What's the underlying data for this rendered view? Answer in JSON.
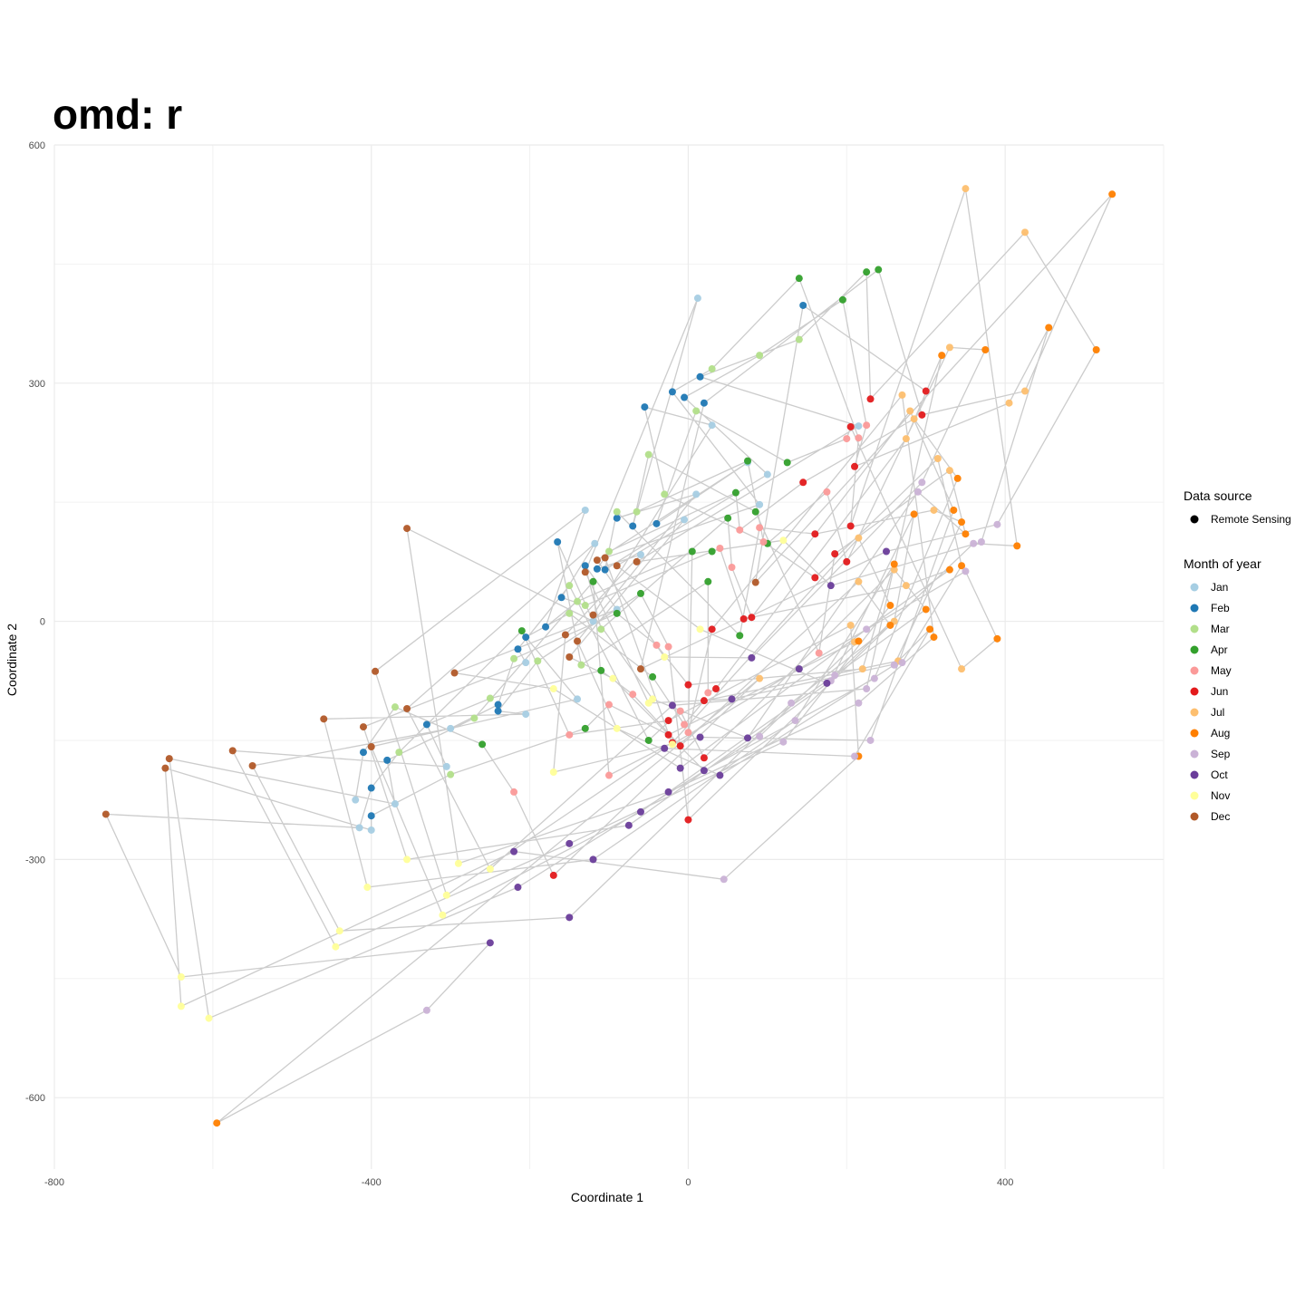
{
  "chart_data": {
    "type": "scatter",
    "title": "omd: r",
    "xlabel": "Coordinate 1",
    "ylabel": "Coordinate 2",
    "xlim": [
      -800,
      600
    ],
    "ylim": [
      -690,
      600
    ],
    "x_ticks": [
      -800,
      -400,
      0,
      400
    ],
    "y_ticks": [
      -600,
      -300,
      0,
      300,
      600
    ],
    "grid": true,
    "legend_position": "right",
    "connect_points_in_order": true,
    "line_color": "#cccccc",
    "legend": {
      "source_title": "Data source",
      "source_entries": [
        {
          "label": "Remote Sensing",
          "color": "#000000"
        }
      ],
      "month_title": "Month of year",
      "month_entries": [
        {
          "label": "Jan",
          "color": "#a6cee3"
        },
        {
          "label": "Feb",
          "color": "#1f78b4"
        },
        {
          "label": "Mar",
          "color": "#b2df8a"
        },
        {
          "label": "Apr",
          "color": "#33a02c"
        },
        {
          "label": "May",
          "color": "#fb9a99"
        },
        {
          "label": "Jun",
          "color": "#e31a1c"
        },
        {
          "label": "Jul",
          "color": "#fdbf6f"
        },
        {
          "label": "Aug",
          "color": "#ff7f00"
        },
        {
          "label": "Sep",
          "color": "#cab2d6"
        },
        {
          "label": "Oct",
          "color": "#6a3d9a"
        },
        {
          "label": "Nov",
          "color": "#ffff99"
        },
        {
          "label": "Dec",
          "color": "#b15928"
        }
      ]
    },
    "series": [
      {
        "name": "Jan",
        "points": [
          [
            -420,
            -225
          ],
          [
            -415,
            -260
          ],
          [
            -400,
            -263
          ],
          [
            -370,
            -230
          ],
          [
            -300,
            -135
          ],
          [
            -305,
            -183
          ],
          [
            -205,
            -117
          ],
          [
            -205,
            -52
          ],
          [
            -140,
            -98
          ],
          [
            -120,
            0
          ],
          [
            -118,
            98
          ],
          [
            -130,
            140
          ],
          [
            -90,
            15
          ],
          [
            -60,
            84
          ],
          [
            -5,
            128
          ],
          [
            10,
            160
          ],
          [
            12,
            407
          ],
          [
            30,
            247
          ],
          [
            75,
            200
          ],
          [
            100,
            185
          ],
          [
            90,
            147
          ],
          [
            215,
            246
          ]
        ]
      },
      {
        "name": "Feb",
        "points": [
          [
            -410,
            -165
          ],
          [
            -400,
            -210
          ],
          [
            -400,
            -245
          ],
          [
            -380,
            -175
          ],
          [
            -330,
            -130
          ],
          [
            -240,
            -105
          ],
          [
            -240,
            -113
          ],
          [
            -215,
            -35
          ],
          [
            -205,
            -20
          ],
          [
            -180,
            -7
          ],
          [
            -165,
            100
          ],
          [
            -160,
            30
          ],
          [
            -130,
            70
          ],
          [
            -115,
            66
          ],
          [
            -105,
            65
          ],
          [
            -90,
            130
          ],
          [
            -70,
            120
          ],
          [
            -55,
            270
          ],
          [
            -40,
            123
          ],
          [
            -20,
            289
          ],
          [
            -5,
            282
          ],
          [
            15,
            308
          ],
          [
            20,
            275
          ],
          [
            145,
            398
          ]
        ]
      },
      {
        "name": "Mar",
        "points": [
          [
            -370,
            -108
          ],
          [
            -365,
            -165
          ],
          [
            -300,
            -193
          ],
          [
            -270,
            -122
          ],
          [
            -250,
            -97
          ],
          [
            -220,
            -47
          ],
          [
            -190,
            -50
          ],
          [
            -150,
            45
          ],
          [
            -150,
            10
          ],
          [
            -140,
            25
          ],
          [
            -135,
            -55
          ],
          [
            -130,
            20
          ],
          [
            -110,
            -10
          ],
          [
            -100,
            88
          ],
          [
            -90,
            138
          ],
          [
            -65,
            138
          ],
          [
            -50,
            210
          ],
          [
            -30,
            160
          ],
          [
            10,
            265
          ],
          [
            30,
            318
          ],
          [
            90,
            335
          ],
          [
            140,
            355
          ]
        ]
      },
      {
        "name": "Apr",
        "points": [
          [
            -260,
            -155
          ],
          [
            -210,
            -12
          ],
          [
            -130,
            -135
          ],
          [
            -120,
            50
          ],
          [
            -110,
            -62
          ],
          [
            -90,
            10
          ],
          [
            -60,
            35
          ],
          [
            -50,
            -150
          ],
          [
            -45,
            -70
          ],
          [
            5,
            88
          ],
          [
            25,
            50
          ],
          [
            30,
            88
          ],
          [
            50,
            130
          ],
          [
            60,
            162
          ],
          [
            65,
            -18
          ],
          [
            75,
            202
          ],
          [
            85,
            138
          ],
          [
            100,
            98
          ],
          [
            125,
            200
          ],
          [
            140,
            432
          ],
          [
            195,
            405
          ],
          [
            225,
            440
          ],
          [
            240,
            443
          ]
        ]
      },
      {
        "name": "May",
        "points": [
          [
            -220,
            -215
          ],
          [
            -150,
            -143
          ],
          [
            -100,
            -105
          ],
          [
            -100,
            -194
          ],
          [
            -70,
            -92
          ],
          [
            -40,
            -30
          ],
          [
            -25,
            -32
          ],
          [
            -10,
            -113
          ],
          [
            -5,
            -130
          ],
          [
            0,
            -140
          ],
          [
            25,
            -90
          ],
          [
            40,
            92
          ],
          [
            55,
            68
          ],
          [
            65,
            115
          ],
          [
            90,
            118
          ],
          [
            95,
            100
          ],
          [
            165,
            -40
          ],
          [
            175,
            163
          ],
          [
            200,
            230
          ],
          [
            215,
            231
          ],
          [
            225,
            247
          ]
        ]
      },
      {
        "name": "Jun",
        "points": [
          [
            -170,
            -320
          ],
          [
            -25,
            -125
          ],
          [
            -25,
            -143
          ],
          [
            -20,
            -153
          ],
          [
            -10,
            -157
          ],
          [
            0,
            -80
          ],
          [
            0,
            -250
          ],
          [
            20,
            -172
          ],
          [
            20,
            -100
          ],
          [
            30,
            -10
          ],
          [
            35,
            -85
          ],
          [
            70,
            3
          ],
          [
            80,
            5
          ],
          [
            145,
            175
          ],
          [
            160,
            110
          ],
          [
            160,
            55
          ],
          [
            185,
            85
          ],
          [
            200,
            75
          ],
          [
            205,
            245
          ],
          [
            205,
            120
          ],
          [
            210,
            195
          ],
          [
            230,
            280
          ],
          [
            295,
            260
          ],
          [
            300,
            290
          ]
        ]
      },
      {
        "name": "Jul",
        "points": [
          [
            90,
            -72
          ],
          [
            205,
            -5
          ],
          [
            210,
            -26
          ],
          [
            215,
            105
          ],
          [
            215,
            50
          ],
          [
            220,
            -60
          ],
          [
            260,
            0
          ],
          [
            260,
            65
          ],
          [
            265,
            -50
          ],
          [
            270,
            285
          ],
          [
            275,
            230
          ],
          [
            275,
            45
          ],
          [
            280,
            265
          ],
          [
            285,
            255
          ],
          [
            310,
            140
          ],
          [
            315,
            205
          ],
          [
            330,
            190
          ],
          [
            330,
            345
          ],
          [
            345,
            -60
          ],
          [
            405,
            275
          ],
          [
            425,
            490
          ],
          [
            425,
            290
          ],
          [
            350,
            545
          ]
        ]
      },
      {
        "name": "Aug",
        "points": [
          [
            -595,
            -632
          ],
          [
            215,
            -170
          ],
          [
            215,
            -25
          ],
          [
            255,
            20
          ],
          [
            255,
            -5
          ],
          [
            260,
            72
          ],
          [
            285,
            135
          ],
          [
            300,
            15
          ],
          [
            305,
            -10
          ],
          [
            310,
            -20
          ],
          [
            320,
            335
          ],
          [
            330,
            65
          ],
          [
            335,
            140
          ],
          [
            340,
            180
          ],
          [
            345,
            125
          ],
          [
            345,
            70
          ],
          [
            350,
            110
          ],
          [
            375,
            342
          ],
          [
            390,
            -22
          ],
          [
            415,
            95
          ],
          [
            455,
            370
          ],
          [
            515,
            342
          ],
          [
            535,
            538
          ]
        ]
      },
      {
        "name": "Sep",
        "points": [
          [
            -330,
            -490
          ],
          [
            45,
            -325
          ],
          [
            90,
            -145
          ],
          [
            120,
            -152
          ],
          [
            130,
            -103
          ],
          [
            135,
            -125
          ],
          [
            180,
            -75
          ],
          [
            185,
            -68
          ],
          [
            210,
            -170
          ],
          [
            215,
            -103
          ],
          [
            225,
            -85
          ],
          [
            225,
            -10
          ],
          [
            230,
            -150
          ],
          [
            235,
            -72
          ],
          [
            260,
            -55
          ],
          [
            270,
            -52
          ],
          [
            290,
            163
          ],
          [
            295,
            175
          ],
          [
            350,
            63
          ],
          [
            360,
            98
          ],
          [
            370,
            100
          ],
          [
            390,
            122
          ]
        ]
      },
      {
        "name": "Oct",
        "points": [
          [
            -250,
            -405
          ],
          [
            -220,
            -290
          ],
          [
            -215,
            -335
          ],
          [
            -150,
            -280
          ],
          [
            -150,
            -373
          ],
          [
            -120,
            -300
          ],
          [
            -75,
            -257
          ],
          [
            -60,
            -240
          ],
          [
            -30,
            -160
          ],
          [
            -25,
            -215
          ],
          [
            -20,
            -106
          ],
          [
            -10,
            -185
          ],
          [
            15,
            -146
          ],
          [
            20,
            -188
          ],
          [
            40,
            -194
          ],
          [
            55,
            -98
          ],
          [
            75,
            -147
          ],
          [
            80,
            -46
          ],
          [
            140,
            -60
          ],
          [
            175,
            -78
          ],
          [
            180,
            45
          ],
          [
            250,
            88
          ]
        ]
      },
      {
        "name": "Nov",
        "points": [
          [
            -640,
            -448
          ],
          [
            -640,
            -485
          ],
          [
            -605,
            -500
          ],
          [
            -445,
            -410
          ],
          [
            -440,
            -390
          ],
          [
            -405,
            -335
          ],
          [
            -355,
            -300
          ],
          [
            -310,
            -370
          ],
          [
            -305,
            -345
          ],
          [
            -290,
            -305
          ],
          [
            -250,
            -312
          ],
          [
            -170,
            -85
          ],
          [
            -170,
            -190
          ],
          [
            -95,
            -72
          ],
          [
            -90,
            -135
          ],
          [
            -50,
            -103
          ],
          [
            -45,
            -98
          ],
          [
            -30,
            -45
          ],
          [
            -20,
            -155
          ],
          [
            15,
            -10
          ],
          [
            120,
            102
          ]
        ]
      },
      {
        "name": "Dec",
        "points": [
          [
            -735,
            -243
          ],
          [
            -660,
            -185
          ],
          [
            -655,
            -173
          ],
          [
            -575,
            -163
          ],
          [
            -550,
            -182
          ],
          [
            -460,
            -123
          ],
          [
            -410,
            -133
          ],
          [
            -400,
            -158
          ],
          [
            -395,
            -63
          ],
          [
            -355,
            117
          ],
          [
            -355,
            -110
          ],
          [
            -295,
            -65
          ],
          [
            -155,
            -17
          ],
          [
            -150,
            -45
          ],
          [
            -140,
            -25
          ],
          [
            -130,
            62
          ],
          [
            -120,
            8
          ],
          [
            -115,
            77
          ],
          [
            -105,
            80
          ],
          [
            -90,
            70
          ],
          [
            -65,
            75
          ],
          [
            -60,
            -60
          ],
          [
            85,
            49
          ]
        ]
      }
    ]
  }
}
